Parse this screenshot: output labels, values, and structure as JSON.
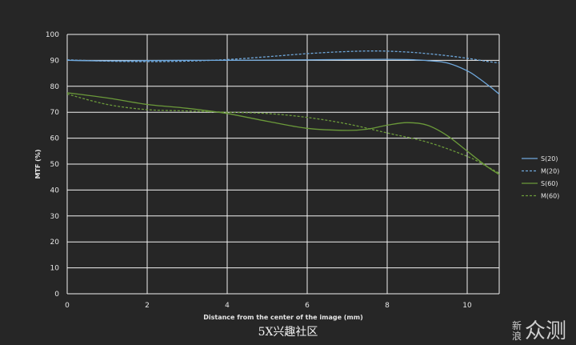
{
  "chart_data": {
    "type": "line",
    "xlabel": "Distance from the center of the image (mm)",
    "ylabel": "MTF (%)",
    "xlim": [
      0,
      10.8
    ],
    "ylim": [
      0,
      100
    ],
    "xticks": [
      0,
      2,
      4,
      6,
      8,
      10
    ],
    "yticks": [
      0,
      10,
      20,
      30,
      40,
      50,
      60,
      70,
      80,
      90,
      100
    ],
    "grid": true,
    "legend_position": "right",
    "series": [
      {
        "name": "S(20)",
        "color": "#6fa8dc",
        "dash": "solid",
        "x": [
          0,
          1,
          2,
          3,
          4,
          5,
          6,
          7,
          8,
          8.5,
          9,
          9.5,
          10,
          10.3,
          10.6,
          10.8
        ],
        "y": [
          90,
          89.8,
          89.9,
          90,
          90,
          90.1,
          90.2,
          90.3,
          90.4,
          90.3,
          89.9,
          89,
          86,
          83,
          79.5,
          77
        ]
      },
      {
        "name": "M(20)",
        "color": "#6fa8dc",
        "dash": "dashed",
        "x": [
          0,
          1,
          2,
          3,
          4,
          5,
          6,
          7,
          7.8,
          8.5,
          9,
          9.5,
          10,
          10.5,
          10.8
        ],
        "y": [
          90.2,
          89.7,
          89.5,
          89.7,
          90.3,
          91.4,
          92.6,
          93.4,
          93.6,
          93.2,
          92.6,
          91.8,
          90.8,
          89.6,
          89
        ]
      },
      {
        "name": "S(60)",
        "color": "#6b9a3a",
        "dash": "solid",
        "x": [
          0,
          1,
          2,
          3,
          4,
          5,
          6,
          7,
          7.5,
          8,
          8.5,
          9,
          9.5,
          10,
          10.5,
          10.8
        ],
        "y": [
          77.5,
          75.5,
          73,
          71.5,
          69.5,
          66.5,
          63.8,
          63,
          63.5,
          65,
          66,
          65,
          61,
          55,
          49,
          46
        ]
      },
      {
        "name": "M(60)",
        "color": "#6b9a3a",
        "dash": "dashed",
        "x": [
          0,
          1,
          2,
          3,
          4,
          5,
          6,
          7,
          8,
          9,
          10,
          10.5,
          10.8
        ],
        "y": [
          77,
          73,
          71,
          70.5,
          70,
          69.5,
          68,
          65.5,
          62,
          58.5,
          53,
          49,
          46.5
        ]
      }
    ]
  },
  "caption": "5X兴趣社区",
  "watermark": {
    "small": "新浪",
    "big": "众测"
  }
}
